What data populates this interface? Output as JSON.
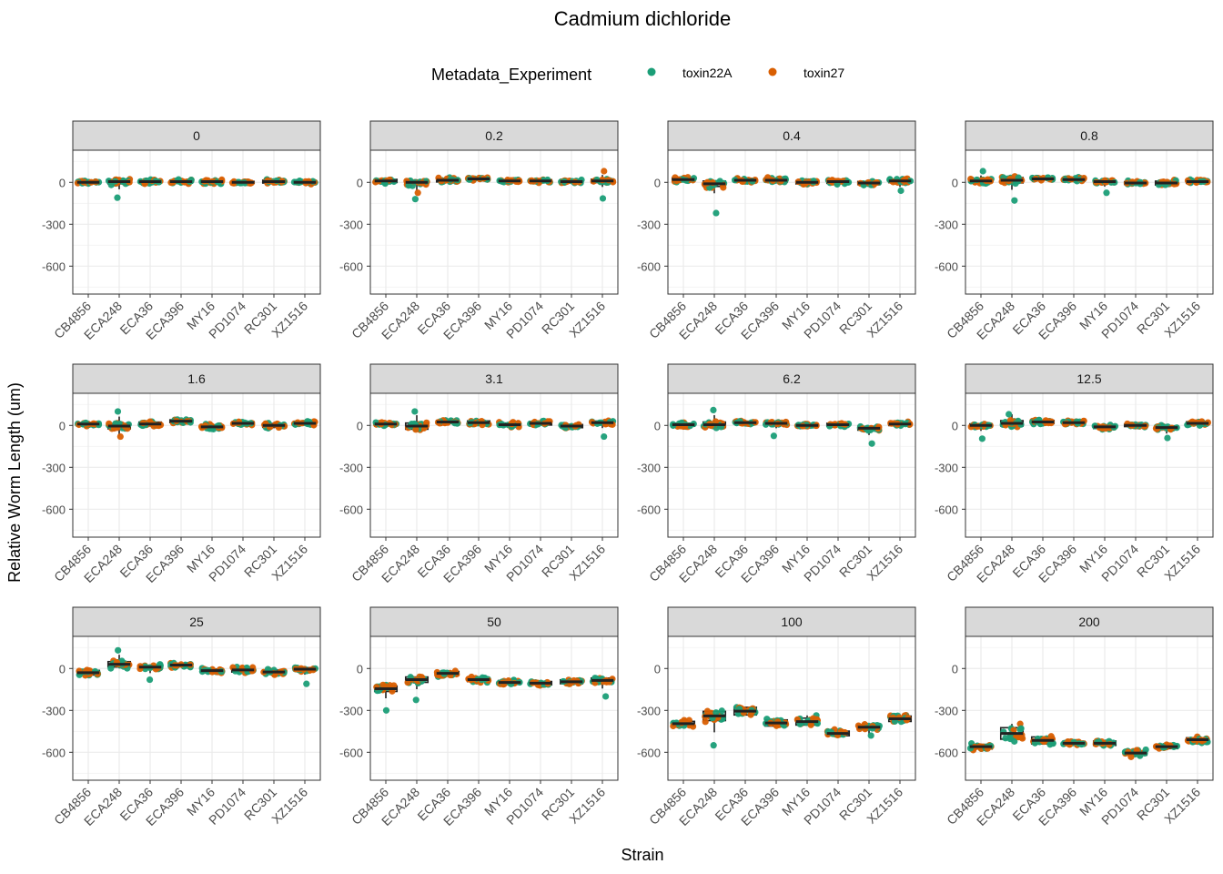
{
  "chart_data": {
    "type": "box-jitter",
    "title": "Cadmium dichloride",
    "xlabel": "Strain",
    "ylabel": "Relative Worm Length (um)",
    "legend": {
      "title": "Metadata_Experiment",
      "placement": "top",
      "entries": [
        {
          "name": "toxin22A",
          "color": "#1b9e77"
        },
        {
          "name": "toxin27",
          "color": "#d95f02"
        }
      ]
    },
    "ylim": [
      -800,
      230
    ],
    "yticks": [
      0,
      -300,
      -600
    ],
    "ytick_labels": [
      "0",
      "-300",
      "-600"
    ],
    "grid": true,
    "categories": [
      "CB4856",
      "ECA248",
      "ECA36",
      "ECA396",
      "MY16",
      "PD1074",
      "RC301",
      "XZ1516"
    ],
    "facets": [
      {
        "label": "0",
        "medians": [
          0,
          5,
          5,
          5,
          5,
          0,
          5,
          0
        ],
        "spread": [
          18,
          28,
          20,
          20,
          20,
          12,
          18,
          15
        ],
        "outliers": [
          [
            1,
            -110
          ]
        ]
      },
      {
        "label": "0.2",
        "medians": [
          10,
          0,
          15,
          25,
          10,
          10,
          5,
          10
        ],
        "spread": [
          20,
          30,
          22,
          15,
          15,
          15,
          15,
          22
        ],
        "outliers": [
          [
            1,
            -120
          ],
          [
            1,
            -75
          ],
          [
            7,
            -115
          ],
          [
            7,
            80
          ]
        ]
      },
      {
        "label": "0.4",
        "medians": [
          20,
          -10,
          15,
          15,
          0,
          5,
          -5,
          10
        ],
        "spread": [
          22,
          35,
          22,
          22,
          20,
          22,
          20,
          22
        ],
        "outliers": [
          [
            1,
            -220
          ],
          [
            7,
            -60
          ]
        ]
      },
      {
        "label": "0.8",
        "medians": [
          10,
          15,
          25,
          20,
          5,
          -5,
          -5,
          5
        ],
        "spread": [
          20,
          35,
          15,
          20,
          18,
          18,
          25,
          22
        ],
        "outliers": [
          [
            0,
            80
          ],
          [
            1,
            -130
          ],
          [
            4,
            -75
          ]
        ]
      },
      {
        "label": "1.6",
        "medians": [
          10,
          -5,
          10,
          30,
          -10,
          15,
          0,
          15
        ],
        "spread": [
          18,
          35,
          25,
          18,
          25,
          18,
          25,
          20
        ],
        "outliers": [
          [
            1,
            100
          ],
          [
            1,
            -80
          ]
        ]
      },
      {
        "label": "3.1",
        "medians": [
          10,
          -5,
          25,
          20,
          5,
          15,
          -5,
          20
        ],
        "spread": [
          20,
          40,
          20,
          22,
          22,
          22,
          20,
          20
        ],
        "outliers": [
          [
            1,
            100
          ],
          [
            7,
            -80
          ]
        ]
      },
      {
        "label": "6.2",
        "medians": [
          5,
          5,
          20,
          15,
          0,
          5,
          -20,
          10
        ],
        "spread": [
          20,
          35,
          15,
          18,
          15,
          18,
          25,
          20
        ],
        "outliers": [
          [
            1,
            110
          ],
          [
            3,
            -75
          ],
          [
            6,
            -130
          ]
        ]
      },
      {
        "label": "12.5",
        "medians": [
          0,
          15,
          25,
          20,
          -10,
          0,
          -15,
          15
        ],
        "spread": [
          20,
          35,
          20,
          20,
          22,
          15,
          22,
          20
        ],
        "outliers": [
          [
            0,
            -95
          ],
          [
            1,
            80
          ],
          [
            6,
            -90
          ]
        ]
      },
      {
        "label": "25",
        "medians": [
          -30,
          30,
          10,
          25,
          -15,
          -10,
          -25,
          -5
        ],
        "spread": [
          30,
          35,
          22,
          22,
          20,
          28,
          25,
          20
        ],
        "outliers": [
          [
            1,
            130
          ],
          [
            2,
            -80
          ],
          [
            7,
            -110
          ]
        ]
      },
      {
        "label": "50",
        "medians": [
          -145,
          -80,
          -35,
          -80,
          -100,
          -105,
          -95,
          -85
        ],
        "spread": [
          35,
          35,
          25,
          25,
          25,
          22,
          25,
          30
        ],
        "outliers": [
          [
            0,
            -300
          ],
          [
            1,
            -225
          ],
          [
            7,
            -200
          ]
        ]
      },
      {
        "label": "100",
        "medians": [
          -395,
          -340,
          -305,
          -390,
          -380,
          -465,
          -420,
          -360
        ],
        "spread": [
          30,
          60,
          50,
          40,
          45,
          30,
          28,
          35
        ],
        "outliers": [
          [
            1,
            -550
          ],
          [
            6,
            -480
          ]
        ]
      },
      {
        "label": "200",
        "medians": [
          -560,
          -465,
          -515,
          -535,
          -535,
          -605,
          -560,
          -510
        ],
        "spread": [
          30,
          75,
          45,
          25,
          28,
          28,
          25,
          25
        ],
        "outliers": []
      }
    ]
  }
}
